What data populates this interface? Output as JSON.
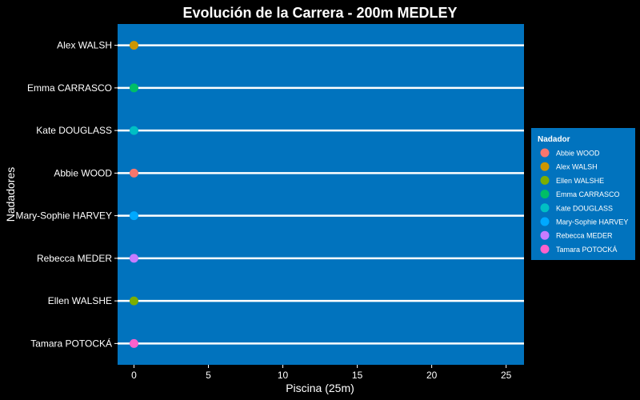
{
  "chart_data": {
    "type": "scatter",
    "title": "Evolución de la Carrera - 200m MEDLEY",
    "xlabel": "Piscina (25m)",
    "ylabel": "Nadadores",
    "xlim": [
      -1.1,
      26.2
    ],
    "x_ticks": [
      0,
      5,
      10,
      15,
      20,
      25
    ],
    "categories": [
      "Tamara POTOCKÁ",
      "Ellen WALSHE",
      "Rebecca MEDER",
      "Mary-Sophie HARVEY",
      "Abbie WOOD",
      "Kate DOUGLASS",
      "Emma CARRASCO",
      "Alex WALSH"
    ],
    "grid": false,
    "points": [
      {
        "swimmer": "Alex WALSH",
        "x": 0
      },
      {
        "swimmer": "Emma CARRASCO",
        "x": 0
      },
      {
        "swimmer": "Kate DOUGLASS",
        "x": 0
      },
      {
        "swimmer": "Abbie WOOD",
        "x": 0
      },
      {
        "swimmer": "Mary-Sophie HARVEY",
        "x": 0
      },
      {
        "swimmer": "Rebecca MEDER",
        "x": 0
      },
      {
        "swimmer": "Ellen WALSHE",
        "x": 0
      },
      {
        "swimmer": "Tamara POTOCKÁ",
        "x": 0
      }
    ],
    "legend": {
      "title": "Nadador",
      "position": "right",
      "entries": [
        {
          "name": "Abbie WOOD",
          "color": "#F8766D"
        },
        {
          "name": "Alex WALSH",
          "color": "#CD9600"
        },
        {
          "name": "Ellen WALSHE",
          "color": "#7CAE00"
        },
        {
          "name": "Emma CARRASCO",
          "color": "#00BE67"
        },
        {
          "name": "Kate DOUGLASS",
          "color": "#00BFC4"
        },
        {
          "name": "Mary-Sophie HARVEY",
          "color": "#00A9FF"
        },
        {
          "name": "Rebecca MEDER",
          "color": "#C77CFF"
        },
        {
          "name": "Tamara POTOCKÁ",
          "color": "#FF61CC"
        }
      ]
    },
    "colors": {
      "background": "#000000",
      "panel": "#0173BE",
      "lane_line": "#ffffff",
      "text": "#ffffff"
    }
  }
}
